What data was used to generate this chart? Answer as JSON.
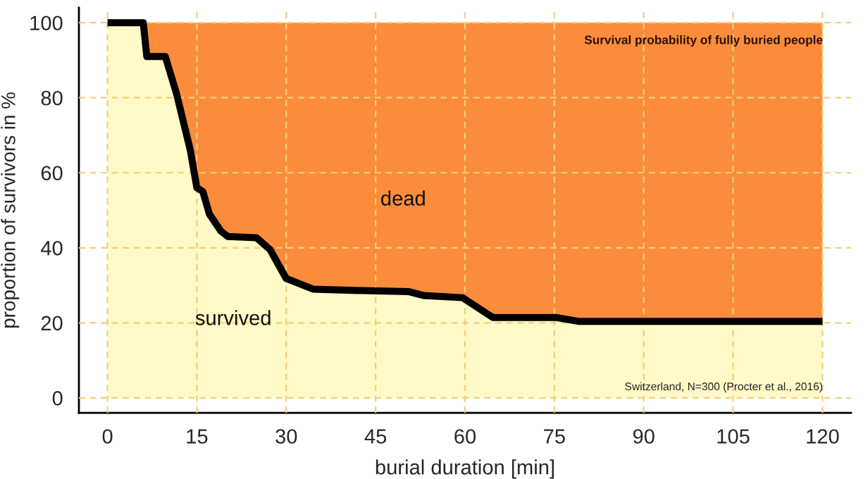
{
  "chart_data": {
    "type": "area",
    "stacked": true,
    "xlabel": "burial duration [min]",
    "ylabel": "proportion of survivors in %",
    "annotations": [
      "Survival probability of fully buried people",
      "Switzerland, N=300 (Procter et al., 2016)"
    ],
    "x": [
      0,
      6,
      6.6,
      9.7,
      11.6,
      13.9,
      15,
      16,
      17.1,
      19,
      20.2,
      25,
      27.3,
      30,
      34.5,
      42.7,
      50.6,
      53,
      59.6,
      64.7,
      75.4,
      79,
      120
    ],
    "series": [
      {
        "name": "survived",
        "color": "#fffac8",
        "values": [
          100,
          100,
          91,
          91,
          81,
          66,
          56,
          55,
          49,
          44.5,
          43,
          42.7,
          39.5,
          31.8,
          29,
          28.6,
          28.3,
          27.3,
          26.7,
          21.4,
          21.4,
          20.4,
          20.4
        ]
      },
      {
        "name": "dead",
        "color": "#fa8c3c",
        "values": [
          0,
          0,
          9,
          9,
          19,
          34,
          44,
          45,
          51,
          55.5,
          57,
          57.3,
          60.5,
          68.2,
          71,
          71.4,
          71.7,
          72.7,
          73.3,
          78.6,
          78.6,
          79.6,
          79.6
        ]
      }
    ],
    "xlim": [
      -4.8,
      124.8
    ],
    "ylim": [
      -4,
      104
    ],
    "xticks": [
      0,
      15,
      30,
      45,
      60,
      75,
      90,
      105,
      120
    ],
    "yticks": [
      0,
      20,
      40,
      60,
      80,
      100
    ],
    "grid": true
  }
}
